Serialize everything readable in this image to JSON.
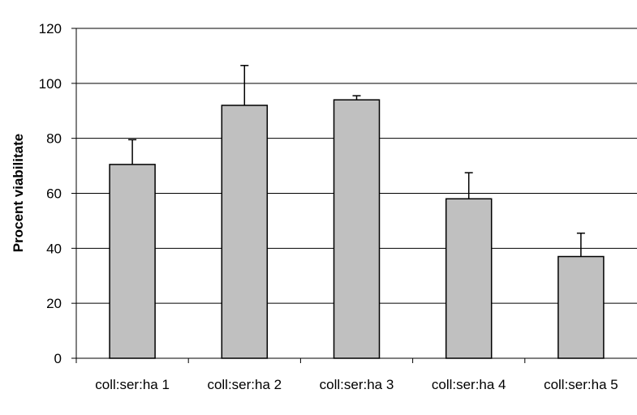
{
  "chart_data": {
    "type": "bar",
    "title": "",
    "xlabel": "",
    "ylabel": "Procent viabilitate",
    "categories": [
      "coll:ser:ha 1",
      "coll:ser:ha 2",
      "coll:ser:ha 3",
      "coll:ser:ha 4",
      "coll:ser:ha 5"
    ],
    "values": [
      70.5,
      92,
      94,
      58,
      37
    ],
    "errors": [
      9,
      14.5,
      1.5,
      9.5,
      8.5
    ],
    "ylim": [
      0,
      120
    ],
    "yticks": [
      0,
      20,
      40,
      60,
      80,
      100,
      120
    ],
    "grid": true,
    "bar_color": "#c0c0c0",
    "edge_color": "#000000"
  }
}
